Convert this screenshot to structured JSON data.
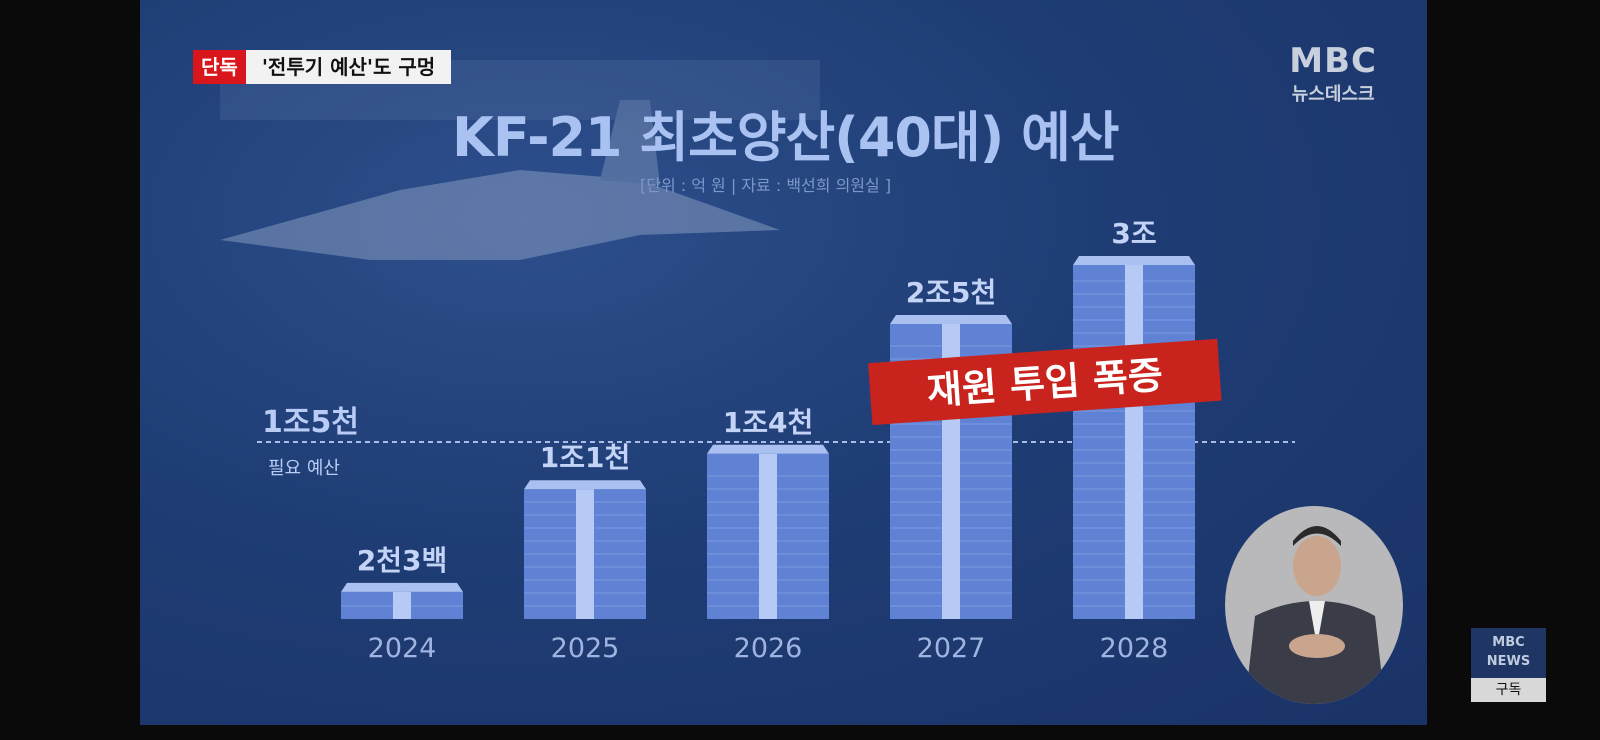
{
  "broadcast": {
    "badge_tag": "단독",
    "badge_text": "'전투기 예산'도 구멍",
    "logo_main": "MBC",
    "logo_sub": "뉴스데스크",
    "subscribe": {
      "logo": "MBC",
      "news": "NEWS",
      "label": "구독"
    }
  },
  "colors": {
    "bar": "#5f82d4",
    "bar_top": "#a9c0f0",
    "stripe": "#b7caf5",
    "annotation": "#c8231d",
    "badge_red": "#d8161b"
  },
  "chart_data": {
    "type": "bar",
    "title": "KF-21 최초양산(40대) 예산",
    "subtitle": "[단위 : 억 원 | 자료 : 백선희 의원실 ]",
    "unit": "억 원",
    "categories": [
      "2024",
      "2025",
      "2026",
      "2027",
      "2028"
    ],
    "values": [
      2300,
      11000,
      14000,
      25000,
      30000
    ],
    "data_labels": [
      "2천3백",
      "1조1천",
      "1조4천",
      "2조5천",
      "3조"
    ],
    "reference_line": {
      "value": 15000,
      "label": "1조5천",
      "sublabel": "필요 예산",
      "style": "dashed"
    },
    "annotation": "재원 투입 폭증",
    "ylim": [
      0,
      30000
    ],
    "grid": false
  }
}
